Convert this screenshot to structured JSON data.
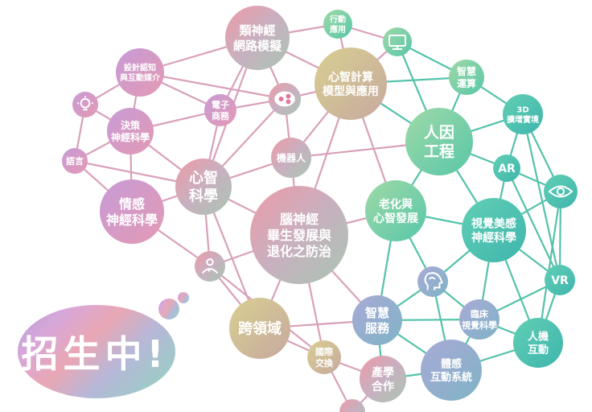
{
  "diagram": {
    "nodes": [
      {
        "id": "n1",
        "label": [
          "類神經",
          "網路模擬"
        ]
      },
      {
        "id": "n2",
        "label": [
          "行動",
          "應用"
        ]
      },
      {
        "id": "n3",
        "icon": "monitor-icon"
      },
      {
        "id": "n4",
        "label": [
          "智慧",
          "運算"
        ]
      },
      {
        "id": "n5",
        "label": [
          "設計認知",
          "與互動媒介"
        ]
      },
      {
        "id": "n6",
        "icon": "lightbulb-icon"
      },
      {
        "id": "n7",
        "label": [
          "電子",
          "商務"
        ]
      },
      {
        "id": "n8",
        "icon": "brain-share-icon"
      },
      {
        "id": "n9",
        "label": [
          "心智計算",
          "模型與應用"
        ]
      },
      {
        "id": "n10",
        "label": [
          "3D",
          "擴增實境"
        ]
      },
      {
        "id": "n11",
        "label": [
          "決策",
          "神經科學"
        ]
      },
      {
        "id": "n12",
        "label": [
          "人因",
          "工程"
        ]
      },
      {
        "id": "n13",
        "label": [
          "語言"
        ]
      },
      {
        "id": "n14",
        "label": [
          "機器人"
        ]
      },
      {
        "id": "n15",
        "label": [
          "心智",
          "科學"
        ]
      },
      {
        "id": "n16",
        "label": [
          "AR"
        ]
      },
      {
        "id": "n17",
        "icon": "eye-icon"
      },
      {
        "id": "n18",
        "label": [
          "情感",
          "神經科學"
        ]
      },
      {
        "id": "n19",
        "label": [
          "老化與",
          "心智發展"
        ]
      },
      {
        "id": "n20",
        "label": [
          "腦神經",
          "畢生發展與",
          "退化之防治"
        ]
      },
      {
        "id": "n21",
        "label": [
          "視覺美感",
          "神經科學"
        ]
      },
      {
        "id": "n22",
        "icon": "person-heart-icon"
      },
      {
        "id": "n23",
        "icon": "head-brain-icon"
      },
      {
        "id": "n24",
        "label": [
          "VR"
        ]
      },
      {
        "id": "n25",
        "label": [
          "跨領域"
        ]
      },
      {
        "id": "n26",
        "label": [
          "智慧",
          "服務"
        ]
      },
      {
        "id": "n27",
        "label": [
          "臨床",
          "視覺科學"
        ]
      },
      {
        "id": "n28",
        "label": [
          "人機",
          "互動"
        ]
      },
      {
        "id": "n29",
        "label": [
          "國際",
          "交換"
        ]
      },
      {
        "id": "n30",
        "label": [
          "體感",
          "互動系統"
        ]
      },
      {
        "id": "n31",
        "label": [
          "產學",
          "合作"
        ]
      },
      {
        "id": "n32",
        "label": []
      }
    ],
    "edges": [
      [
        "n1",
        "n2"
      ],
      [
        "n1",
        "n9"
      ],
      [
        "n1",
        "n8"
      ],
      [
        "n1",
        "n5"
      ],
      [
        "n1",
        "n7"
      ],
      [
        "n1",
        "n15"
      ],
      [
        "n2",
        "n3"
      ],
      [
        "n2",
        "n9"
      ],
      [
        "n3",
        "n4"
      ],
      [
        "n3",
        "n12"
      ],
      [
        "n3",
        "n9"
      ],
      [
        "n4",
        "n10"
      ],
      [
        "n4",
        "n12"
      ],
      [
        "n4",
        "n9"
      ],
      [
        "n10",
        "n16"
      ],
      [
        "n10",
        "n17"
      ],
      [
        "n10",
        "n12"
      ],
      [
        "n5",
        "n6"
      ],
      [
        "n5",
        "n11"
      ],
      [
        "n5",
        "n7"
      ],
      [
        "n5",
        "n8"
      ],
      [
        "n6",
        "n11"
      ],
      [
        "n6",
        "n13"
      ],
      [
        "n7",
        "n8"
      ],
      [
        "n7",
        "n15"
      ],
      [
        "n7",
        "n11"
      ],
      [
        "n8",
        "n9"
      ],
      [
        "n8",
        "n14"
      ],
      [
        "n8",
        "n15"
      ],
      [
        "n9",
        "n14"
      ],
      [
        "n9",
        "n12"
      ],
      [
        "n9",
        "n20"
      ],
      [
        "n9",
        "n19"
      ],
      [
        "n11",
        "n13"
      ],
      [
        "n11",
        "n15"
      ],
      [
        "n11",
        "n18"
      ],
      [
        "n13",
        "n18"
      ],
      [
        "n13",
        "n15"
      ],
      [
        "n14",
        "n15"
      ],
      [
        "n14",
        "n20"
      ],
      [
        "n14",
        "n12"
      ],
      [
        "n15",
        "n18"
      ],
      [
        "n15",
        "n20"
      ],
      [
        "n15",
        "n22"
      ],
      [
        "n15",
        "n25"
      ],
      [
        "n12",
        "n16"
      ],
      [
        "n12",
        "n19"
      ],
      [
        "n12",
        "n21"
      ],
      [
        "n16",
        "n17"
      ],
      [
        "n16",
        "n21"
      ],
      [
        "n16",
        "n24"
      ],
      [
        "n17",
        "n24"
      ],
      [
        "n17",
        "n21"
      ],
      [
        "n18",
        "n22"
      ],
      [
        "n19",
        "n20"
      ],
      [
        "n19",
        "n21"
      ],
      [
        "n19",
        "n23"
      ],
      [
        "n19",
        "n26"
      ],
      [
        "n20",
        "n22"
      ],
      [
        "n20",
        "n25"
      ],
      [
        "n20",
        "n26"
      ],
      [
        "n20",
        "n29"
      ],
      [
        "n21",
        "n23"
      ],
      [
        "n21",
        "n24"
      ],
      [
        "n21",
        "n27"
      ],
      [
        "n21",
        "n28"
      ],
      [
        "n22",
        "n25"
      ],
      [
        "n22",
        "n29"
      ],
      [
        "n23",
        "n26"
      ],
      [
        "n23",
        "n27"
      ],
      [
        "n23",
        "n30"
      ],
      [
        "n24",
        "n28"
      ],
      [
        "n24",
        "n27"
      ],
      [
        "n25",
        "n26"
      ],
      [
        "n25",
        "n29"
      ],
      [
        "n26",
        "n27"
      ],
      [
        "n26",
        "n31"
      ],
      [
        "n26",
        "n30"
      ],
      [
        "n27",
        "n28"
      ],
      [
        "n27",
        "n30"
      ],
      [
        "n28",
        "n30"
      ],
      [
        "n29",
        "n31"
      ],
      [
        "n29",
        "n32"
      ],
      [
        "n30",
        "n31"
      ],
      [
        "n31",
        "n32"
      ],
      [
        "n24",
        "n10"
      ],
      [
        "n28",
        "n17"
      ]
    ]
  },
  "cta": {
    "text": "招生中!"
  }
}
